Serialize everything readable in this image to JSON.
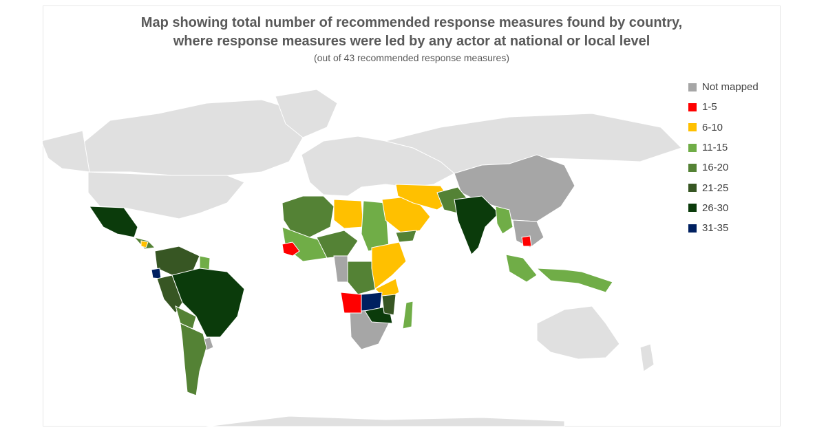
{
  "title_line1": "Map showing total number of recommended response measures found by country,",
  "title_line2": "where response measures were led by any actor at national or local level",
  "subtitle": "(out of 43 recommended  response measures)",
  "legend": [
    {
      "label": "Not mapped",
      "color": "#a6a6a6"
    },
    {
      "label": "1-5",
      "color": "#ff0000"
    },
    {
      "label": "6-10",
      "color": "#ffc000"
    },
    {
      "label": "11-15",
      "color": "#70ad47"
    },
    {
      "label": "16-20",
      "color": "#548235"
    },
    {
      "label": "21-25",
      "color": "#375623"
    },
    {
      "label": "26-30",
      "color": "#0b3b0b"
    },
    {
      "label": "31-35",
      "color": "#002060"
    }
  ],
  "colors": {
    "land_unselected": "#e0e0e0",
    "title": "#595959",
    "border": "#ffffff"
  }
}
